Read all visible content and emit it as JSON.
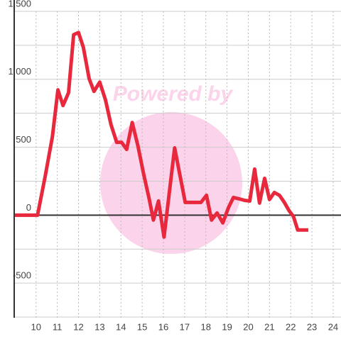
{
  "chart_data": {
    "type": "line",
    "watermark": "Powered by",
    "x": [
      9,
      10.07,
      10.43,
      10.77,
      11.03,
      11.27,
      11.53,
      11.77,
      12.0,
      12.23,
      12.5,
      12.73,
      13.0,
      13.27,
      13.53,
      13.8,
      14.03,
      14.27,
      14.53,
      14.8,
      15.07,
      15.33,
      15.53,
      15.77,
      16.03,
      16.53,
      16.77,
      17.03,
      17.27,
      17.5,
      17.77,
      18.03,
      18.27,
      18.53,
      18.8,
      19.07,
      19.3,
      19.57,
      19.83,
      20.07,
      20.3,
      20.53,
      20.77,
      21.0,
      21.23,
      21.47,
      21.7,
      21.93,
      22.13,
      22.33,
      22.57,
      22.83
    ],
    "series": [
      {
        "color": "#e8283c",
        "values": [
          0,
          0,
          286,
          578,
          922,
          807,
          901,
          1328,
          1344,
          1234,
          1005,
          911,
          979,
          849,
          667,
          536,
          536,
          484,
          682,
          510,
          302,
          120,
          -36,
          104,
          -161,
          495,
          302,
          94,
          94,
          94,
          94,
          146,
          -36,
          16,
          -57,
          57,
          130,
          120,
          109,
          104,
          339,
          89,
          271,
          115,
          167,
          146,
          94,
          31,
          -10,
          -109,
          -109,
          -109
        ]
      }
    ],
    "xlim": [
      8.97,
      24.37
    ],
    "xticks": [
      10,
      11,
      12,
      13,
      14,
      15,
      16,
      17,
      18,
      19,
      20,
      21,
      22,
      23,
      24
    ],
    "ylim": [
      -755,
      1500
    ],
    "yticks": [
      -500,
      0,
      500,
      {
        "value": 1000,
        "label": "1,000"
      },
      {
        "value": 1500,
        "label": "1,500"
      }
    ],
    "minor_yticks": [
      -750,
      -250,
      250,
      750,
      1250
    ],
    "grid": true
  }
}
